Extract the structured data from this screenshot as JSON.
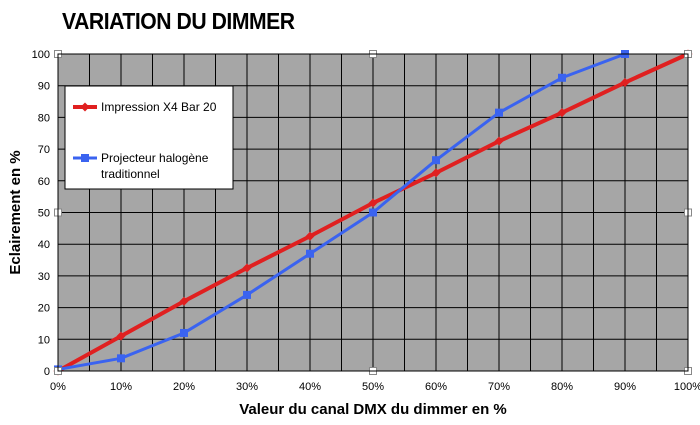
{
  "chart_data": {
    "type": "line",
    "title": "VARIATION DU DIMMER",
    "xlabel": "Valeur du canal DMX du dimmer en %",
    "ylabel": "Eclairement en %",
    "x": [
      0,
      10,
      20,
      30,
      40,
      50,
      60,
      70,
      80,
      90,
      100
    ],
    "x_tick_labels": [
      "0%",
      "10%",
      "20%",
      "30%",
      "40%",
      "50%",
      "60%",
      "70%",
      "80%",
      "90%",
      "100%"
    ],
    "y_ticks": [
      0,
      10,
      20,
      30,
      40,
      50,
      60,
      70,
      80,
      90,
      100
    ],
    "xlim": [
      0,
      100
    ],
    "ylim": [
      0,
      100
    ],
    "grid": true,
    "legend_position": "top-left",
    "plot_background": "#a6a6a6",
    "series": [
      {
        "name": "Impression X4 Bar 20",
        "color": "#e02020",
        "marker": "diamond",
        "x": [
          0,
          10,
          20,
          30,
          40,
          50,
          60,
          70,
          80,
          90,
          100
        ],
        "values": [
          0,
          11,
          22,
          32.5,
          42.5,
          53,
          62.5,
          72.5,
          81.5,
          91,
          100
        ]
      },
      {
        "name": "Projecteur halogène traditionnel",
        "color": "#3a63f0",
        "marker": "square",
        "x": [
          0,
          10,
          20,
          30,
          40,
          50,
          60,
          70,
          80,
          90
        ],
        "values": [
          0.5,
          4,
          12,
          24,
          37,
          50,
          66.5,
          81.5,
          92.5,
          100
        ]
      }
    ],
    "legend": {
      "entries": [
        {
          "lines": [
            "Impression X4 Bar 20"
          ]
        },
        {
          "lines": [
            "Projecteur halogène",
            "traditionnel"
          ]
        }
      ]
    }
  }
}
